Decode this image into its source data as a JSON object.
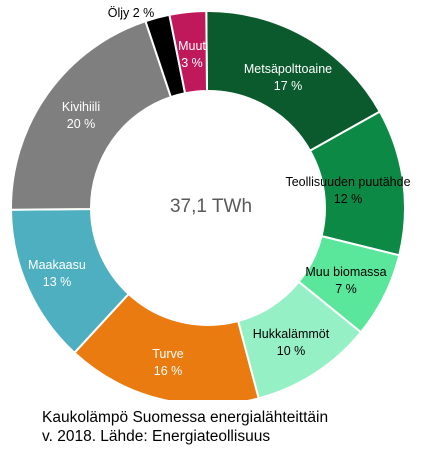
{
  "chart_data": {
    "type": "pie",
    "donut": true,
    "center_label": "37,1 TWh",
    "caption_lines": [
      "Kaukolämpö Suomessa energialähteittäin",
      "v. 2018. Lähde: Energiateollisuus"
    ],
    "slices": [
      {
        "name": "Metsäpolttoaine",
        "value": 17,
        "value_label": "17 %",
        "color": "#0b5a2e",
        "label_color": "#ffffff"
      },
      {
        "name": "Teollisuuden puutähde",
        "value": 12,
        "value_label": "12 %",
        "color": "#0c8a45",
        "label_color": "#000000"
      },
      {
        "name": "Muu biomassa",
        "value": 7,
        "value_label": "7 %",
        "color": "#5ae69b",
        "label_color": "#000000"
      },
      {
        "name": "Hukkalämmöt",
        "value": 10,
        "value_label": "10 %",
        "color": "#96f0c6",
        "label_color": "#000000"
      },
      {
        "name": "Turve",
        "value": 16,
        "value_label": "16 %",
        "color": "#ea7b10",
        "label_color": "#ffffff"
      },
      {
        "name": "Maakaasu",
        "value": 13,
        "value_label": "13 %",
        "color": "#4eafc0",
        "label_color": "#ffffff"
      },
      {
        "name": "Kivihiili",
        "value": 20,
        "value_label": "20 %",
        "color": "#7f7f7f",
        "label_color": "#ffffff"
      },
      {
        "name": "Öljy",
        "value": 2,
        "value_label": "2 %",
        "color": "#000000",
        "label_color": "#000000"
      },
      {
        "name": "Muut",
        "value": 3,
        "value_label": "3 %",
        "color": "#c0195b",
        "label_color": "#ffffff"
      }
    ]
  }
}
